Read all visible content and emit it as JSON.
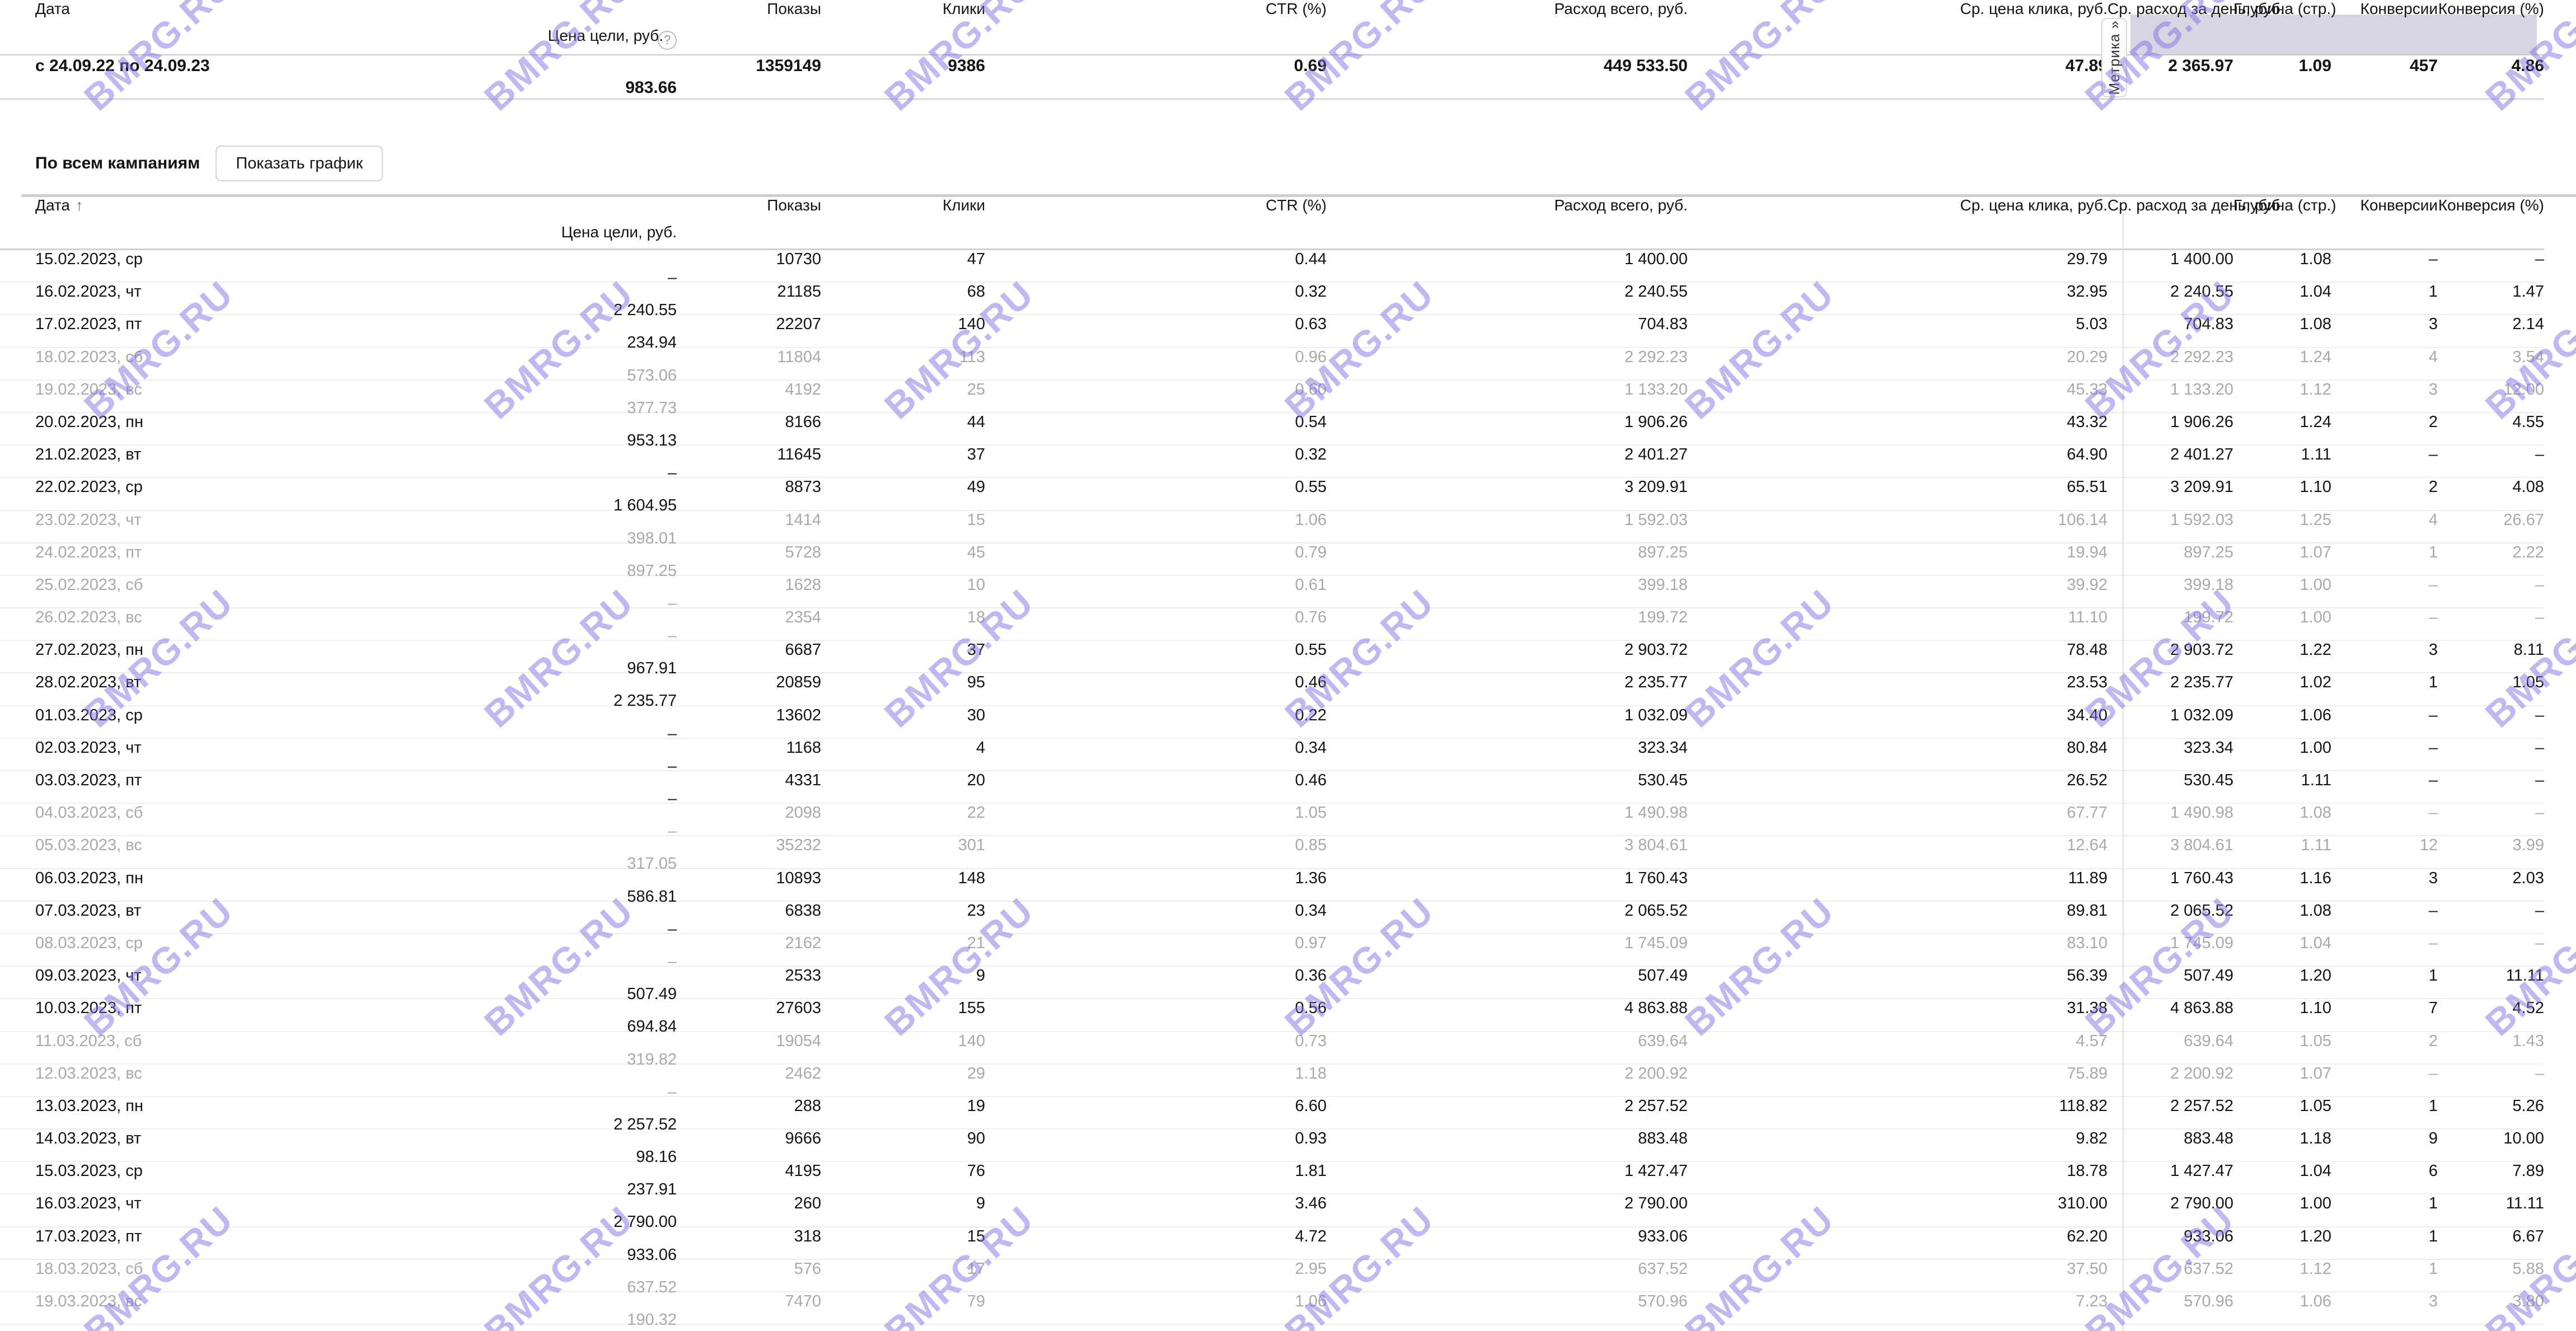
{
  "columns": [
    "Дата",
    "Показы",
    "Клики",
    "CTR (%)",
    "Расход всего, руб.",
    "Ср. цена клика, руб.",
    "Ср. расход за день, руб.",
    "Глубина (стр.)",
    "Конверсии",
    "Конверсия (%)",
    "Цена цели, руб."
  ],
  "metrika_tab_label": "Метрика »",
  "sort_arrow": "↑",
  "help_icon": "?",
  "campaigns_label": "По всем кампаниям",
  "show_chart_button": "Показать график",
  "summary_row": {
    "cells": [
      "с 24.09.22 по 24.09.23",
      "1359149",
      "9386",
      "0.69",
      "449 533.50",
      "47.89",
      "2 365.97",
      "1.09",
      "457",
      "4.86",
      "983.66"
    ]
  },
  "main_table": {
    "rows": [
      {
        "muted": false,
        "cells": [
          "15.02.2023, ср",
          "10730",
          "47",
          "0.44",
          "1 400.00",
          "29.79",
          "1 400.00",
          "1.08",
          "–",
          "–",
          "–"
        ]
      },
      {
        "muted": false,
        "cells": [
          "16.02.2023, чт",
          "21185",
          "68",
          "0.32",
          "2 240.55",
          "32.95",
          "2 240.55",
          "1.04",
          "1",
          "1.47",
          "2 240.55"
        ]
      },
      {
        "muted": false,
        "cells": [
          "17.02.2023, пт",
          "22207",
          "140",
          "0.63",
          "704.83",
          "5.03",
          "704.83",
          "1.08",
          "3",
          "2.14",
          "234.94"
        ]
      },
      {
        "muted": true,
        "cells": [
          "18.02.2023, сб",
          "11804",
          "113",
          "0.96",
          "2 292.23",
          "20.29",
          "2 292.23",
          "1.24",
          "4",
          "3.54",
          "573.06"
        ]
      },
      {
        "muted": true,
        "cells": [
          "19.02.2023, вс",
          "4192",
          "25",
          "0.60",
          "1 133.20",
          "45.33",
          "1 133.20",
          "1.12",
          "3",
          "12.00",
          "377.73"
        ]
      },
      {
        "muted": false,
        "cells": [
          "20.02.2023, пн",
          "8166",
          "44",
          "0.54",
          "1 906.26",
          "43.32",
          "1 906.26",
          "1.24",
          "2",
          "4.55",
          "953.13"
        ]
      },
      {
        "muted": false,
        "cells": [
          "21.02.2023, вт",
          "11645",
          "37",
          "0.32",
          "2 401.27",
          "64.90",
          "2 401.27",
          "1.11",
          "–",
          "–",
          "–"
        ]
      },
      {
        "muted": false,
        "cells": [
          "22.02.2023, ср",
          "8873",
          "49",
          "0.55",
          "3 209.91",
          "65.51",
          "3 209.91",
          "1.10",
          "2",
          "4.08",
          "1 604.95"
        ]
      },
      {
        "muted": true,
        "cells": [
          "23.02.2023, чт",
          "1414",
          "15",
          "1.06",
          "1 592.03",
          "106.14",
          "1 592.03",
          "1.25",
          "4",
          "26.67",
          "398.01"
        ]
      },
      {
        "muted": true,
        "cells": [
          "24.02.2023, пт",
          "5728",
          "45",
          "0.79",
          "897.25",
          "19.94",
          "897.25",
          "1.07",
          "1",
          "2.22",
          "897.25"
        ]
      },
      {
        "muted": true,
        "cells": [
          "25.02.2023, сб",
          "1628",
          "10",
          "0.61",
          "399.18",
          "39.92",
          "399.18",
          "1.00",
          "–",
          "–",
          "–"
        ]
      },
      {
        "muted": true,
        "cells": [
          "26.02.2023, вс",
          "2354",
          "18",
          "0.76",
          "199.72",
          "11.10",
          "199.72",
          "1.00",
          "–",
          "–",
          "–"
        ]
      },
      {
        "muted": false,
        "cells": [
          "27.02.2023, пн",
          "6687",
          "37",
          "0.55",
          "2 903.72",
          "78.48",
          "2 903.72",
          "1.22",
          "3",
          "8.11",
          "967.91"
        ]
      },
      {
        "muted": false,
        "cells": [
          "28.02.2023, вт",
          "20859",
          "95",
          "0.46",
          "2 235.77",
          "23.53",
          "2 235.77",
          "1.02",
          "1",
          "1.05",
          "2 235.77"
        ]
      },
      {
        "muted": false,
        "cells": [
          "01.03.2023, ср",
          "13602",
          "30",
          "0.22",
          "1 032.09",
          "34.40",
          "1 032.09",
          "1.06",
          "–",
          "–",
          "–"
        ]
      },
      {
        "muted": false,
        "cells": [
          "02.03.2023, чт",
          "1168",
          "4",
          "0.34",
          "323.34",
          "80.84",
          "323.34",
          "1.00",
          "–",
          "–",
          "–"
        ]
      },
      {
        "muted": false,
        "cells": [
          "03.03.2023, пт",
          "4331",
          "20",
          "0.46",
          "530.45",
          "26.52",
          "530.45",
          "1.11",
          "–",
          "–",
          "–"
        ]
      },
      {
        "muted": true,
        "cells": [
          "04.03.2023, сб",
          "2098",
          "22",
          "1.05",
          "1 490.98",
          "67.77",
          "1 490.98",
          "1.08",
          "–",
          "–",
          "–"
        ]
      },
      {
        "muted": true,
        "cells": [
          "05.03.2023, вс",
          "35232",
          "301",
          "0.85",
          "3 804.61",
          "12.64",
          "3 804.61",
          "1.11",
          "12",
          "3.99",
          "317.05"
        ]
      },
      {
        "muted": false,
        "cells": [
          "06.03.2023, пн",
          "10893",
          "148",
          "1.36",
          "1 760.43",
          "11.89",
          "1 760.43",
          "1.16",
          "3",
          "2.03",
          "586.81"
        ]
      },
      {
        "muted": false,
        "cells": [
          "07.03.2023, вт",
          "6838",
          "23",
          "0.34",
          "2 065.52",
          "89.81",
          "2 065.52",
          "1.08",
          "–",
          "–",
          "–"
        ]
      },
      {
        "muted": true,
        "cells": [
          "08.03.2023, ср",
          "2162",
          "21",
          "0.97",
          "1 745.09",
          "83.10",
          "1 745.09",
          "1.04",
          "–",
          "–",
          "–"
        ]
      },
      {
        "muted": false,
        "cells": [
          "09.03.2023, чт",
          "2533",
          "9",
          "0.36",
          "507.49",
          "56.39",
          "507.49",
          "1.20",
          "1",
          "11.11",
          "507.49"
        ]
      },
      {
        "muted": false,
        "cells": [
          "10.03.2023, пт",
          "27603",
          "155",
          "0.56",
          "4 863.88",
          "31.38",
          "4 863.88",
          "1.10",
          "7",
          "4.52",
          "694.84"
        ]
      },
      {
        "muted": true,
        "cells": [
          "11.03.2023, сб",
          "19054",
          "140",
          "0.73",
          "639.64",
          "4.57",
          "639.64",
          "1.05",
          "2",
          "1.43",
          "319.82"
        ]
      },
      {
        "muted": true,
        "cells": [
          "12.03.2023, вс",
          "2462",
          "29",
          "1.18",
          "2 200.92",
          "75.89",
          "2 200.92",
          "1.07",
          "–",
          "–",
          "–"
        ]
      },
      {
        "muted": false,
        "cells": [
          "13.03.2023, пн",
          "288",
          "19",
          "6.60",
          "2 257.52",
          "118.82",
          "2 257.52",
          "1.05",
          "1",
          "5.26",
          "2 257.52"
        ]
      },
      {
        "muted": false,
        "cells": [
          "14.03.2023, вт",
          "9666",
          "90",
          "0.93",
          "883.48",
          "9.82",
          "883.48",
          "1.18",
          "9",
          "10.00",
          "98.16"
        ]
      },
      {
        "muted": false,
        "cells": [
          "15.03.2023, ср",
          "4195",
          "76",
          "1.81",
          "1 427.47",
          "18.78",
          "1 427.47",
          "1.04",
          "6",
          "7.89",
          "237.91"
        ]
      },
      {
        "muted": false,
        "cells": [
          "16.03.2023, чт",
          "260",
          "9",
          "3.46",
          "2 790.00",
          "310.00",
          "2 790.00",
          "1.00",
          "1",
          "11.11",
          "2 790.00"
        ]
      },
      {
        "muted": false,
        "cells": [
          "17.03.2023, пт",
          "318",
          "15",
          "4.72",
          "933.06",
          "62.20",
          "933.06",
          "1.20",
          "1",
          "6.67",
          "933.06"
        ]
      },
      {
        "muted": true,
        "cells": [
          "18.03.2023, сб",
          "576",
          "17",
          "2.95",
          "637.52",
          "37.50",
          "637.52",
          "1.12",
          "1",
          "5.88",
          "637.52"
        ]
      },
      {
        "muted": true,
        "cells": [
          "19.03.2023, вс",
          "7470",
          "79",
          "1.06",
          "570.96",
          "7.23",
          "570.96",
          "1.06",
          "3",
          "3.80",
          "190.32"
        ]
      }
    ]
  },
  "watermark": {
    "text": "BMRG.RU"
  },
  "colors": {
    "metrika_header_bg": "#d8d4e3",
    "watermark": "rgba(130,114,228,0.5)",
    "muted_text": "#a9a9a9"
  }
}
